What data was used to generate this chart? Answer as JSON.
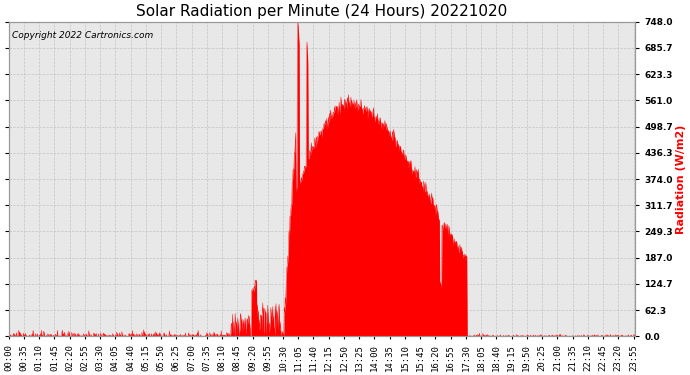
{
  "title": "Solar Radiation per Minute (24 Hours) 20221020",
  "ylabel": "Radiation (W/m2)",
  "ylabel_color": "#ff0000",
  "copyright_text": "Copyright 2022 Cartronics.com",
  "yticks": [
    0.0,
    62.3,
    124.7,
    187.0,
    249.3,
    311.7,
    374.0,
    436.3,
    498.7,
    561.0,
    623.3,
    685.7,
    748.0
  ],
  "ymax": 748.0,
  "ymin": 0.0,
  "fill_color": "#ff0000",
  "line_color": "#ff0000",
  "bg_color": "#ffffff",
  "grid_color": "#bbbbbb",
  "plot_bg_color": "#e8e8e8",
  "baseline_color": "#ff0000",
  "title_fontsize": 11,
  "label_fontsize": 8,
  "tick_fontsize": 6.5
}
